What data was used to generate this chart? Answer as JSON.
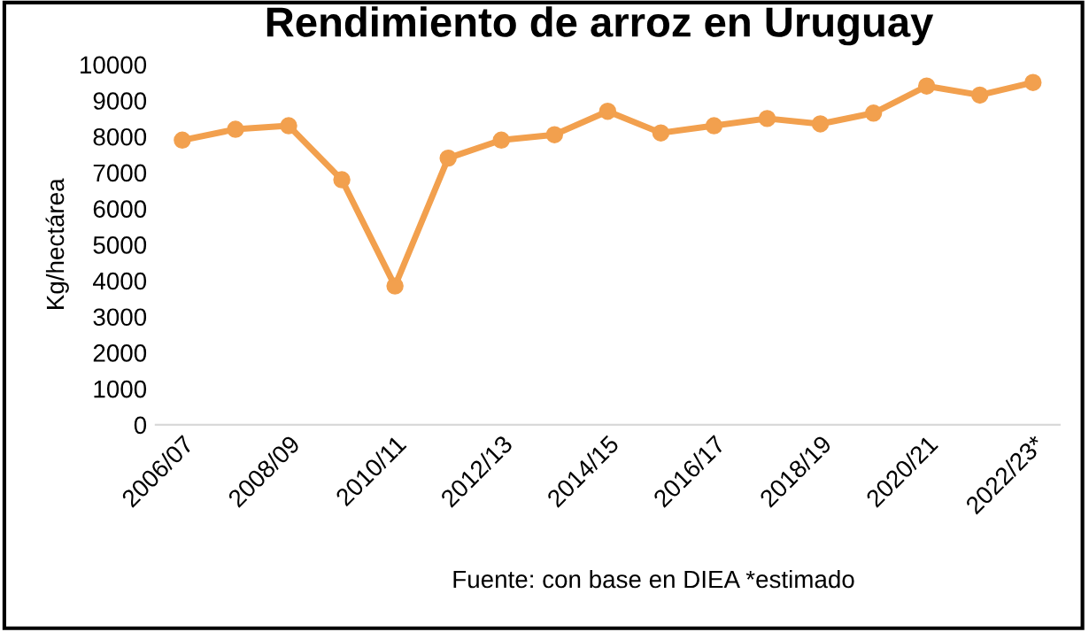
{
  "chart_data": {
    "type": "line",
    "title": "Rendimiento de arroz en Uruguay",
    "ylabel": "Kg/hectárea",
    "categories": [
      "2006/07",
      null,
      "2008/09",
      null,
      "2010/11",
      null,
      "2012/13",
      null,
      "2014/15",
      null,
      "2016/17",
      null,
      "2018/19",
      null,
      "2020/21",
      null,
      "2022/23*"
    ],
    "series": [
      {
        "color": "#f2a04e",
        "values": [
          7900,
          8200,
          8300,
          6800,
          3850,
          7400,
          7900,
          8050,
          8700,
          8100,
          8300,
          8500,
          8350,
          8650,
          9400,
          9150,
          9500
        ]
      }
    ],
    "ylim": [
      0,
      10000
    ],
    "yticks": [
      0,
      1000,
      2000,
      3000,
      4000,
      5000,
      6000,
      7000,
      8000,
      9000,
      10000
    ],
    "marker": "circle",
    "line_style": "solid",
    "grid": false,
    "annotations": [
      "Fuente: con base en DIEA *estimado"
    ]
  }
}
